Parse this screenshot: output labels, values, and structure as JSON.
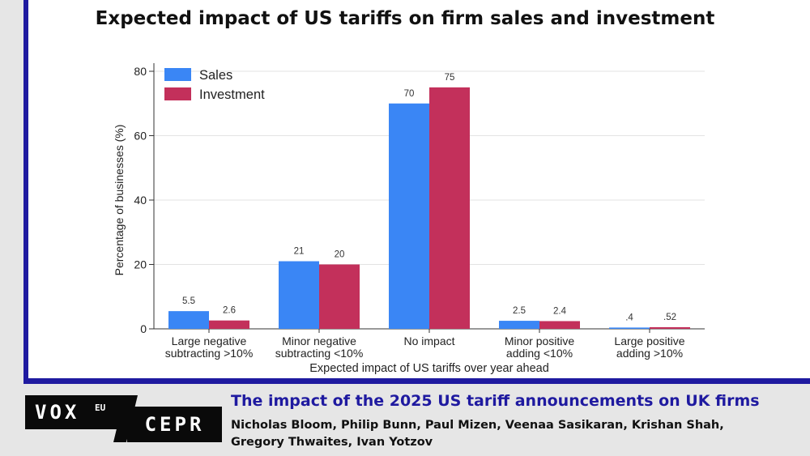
{
  "slide": {
    "title": "Expected impact of US tariffs on firm sales and investment"
  },
  "chart_data": {
    "type": "bar",
    "categories": [
      [
        "Large negative",
        "subtracting >10%"
      ],
      [
        "Minor negative",
        "subtracting <10%"
      ],
      [
        "No impact"
      ],
      [
        "Minor positive",
        "adding <10%"
      ],
      [
        "Large positive",
        "adding >10%"
      ]
    ],
    "series": [
      {
        "name": "Sales",
        "color": "#3a86f5",
        "values": [
          5.5,
          21,
          70,
          2.5,
          0.4
        ],
        "labels": [
          "5.5",
          "21",
          "70",
          "2.5",
          ".4"
        ]
      },
      {
        "name": "Investment",
        "color": "#c3305b",
        "values": [
          2.6,
          20,
          75,
          2.4,
          0.52
        ],
        "labels": [
          "2.6",
          "20",
          "75",
          "2.4",
          ".52"
        ]
      }
    ],
    "xlabel": "Expected impact of US tariffs over year ahead",
    "ylabel": "Percentage of businesses (%)",
    "ylim": [
      0,
      80
    ],
    "yticks": [
      0,
      20,
      40,
      60,
      80
    ],
    "grid": true,
    "legend": "top-left"
  },
  "footer": {
    "logo_vox": "VOX",
    "logo_eu": "EU",
    "logo_cepr": "CEPR",
    "title": "The impact of the 2025 US tariff announcements on UK firms",
    "authors_line1": "Nicholas Bloom, Philip Bunn, Paul Mizen, Veenaa Sasikaran, Krishan Shah,",
    "authors_line2": "Gregory Thwaites, Ivan Yotzov"
  }
}
